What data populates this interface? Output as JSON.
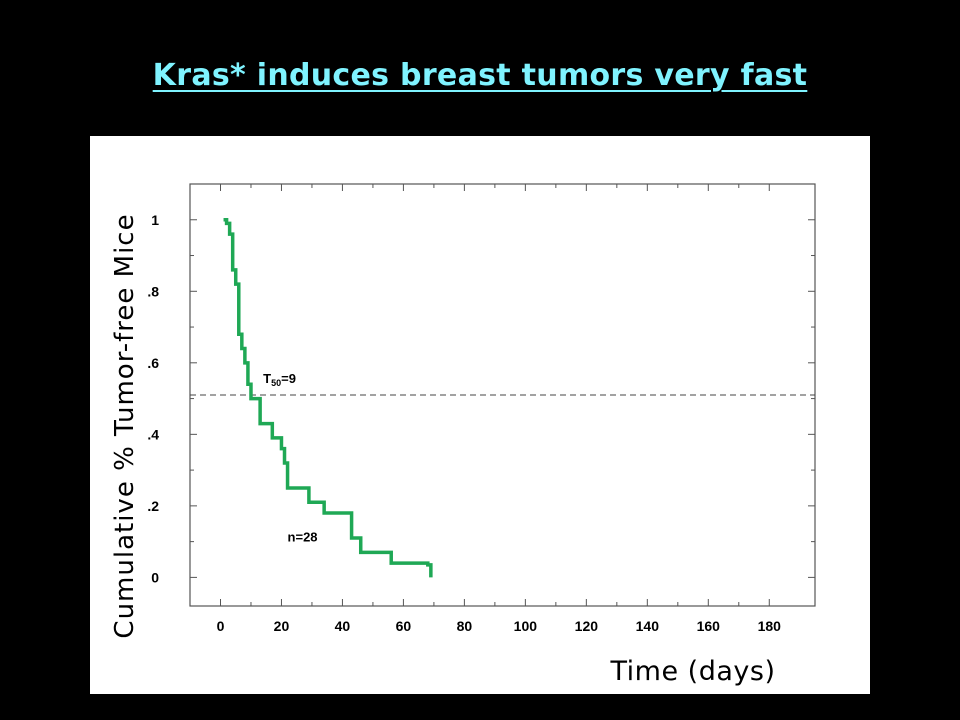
{
  "slide": {
    "title": "Kras* induces breast tumors very fast"
  },
  "chart_data": {
    "type": "line",
    "step": true,
    "title": "",
    "xlabel": "Time (days)",
    "ylabel": "Cumulative % Tumor-free Mice",
    "xlim": [
      -10,
      195
    ],
    "ylim": [
      -0.08,
      1.1
    ],
    "x_ticks": [
      0,
      20,
      40,
      60,
      80,
      100,
      120,
      140,
      160,
      180
    ],
    "x_tick_labels": [
      "0",
      "20",
      "40",
      "60",
      "80",
      "100",
      "120",
      "140",
      "160",
      "180"
    ],
    "y_ticks": [
      0,
      0.2,
      0.4,
      0.6,
      0.8,
      1
    ],
    "y_tick_labels": [
      "0",
      ".2",
      ".4",
      ".6",
      ".8",
      "1"
    ],
    "grid": false,
    "series": [
      {
        "color": "#1fa855",
        "x": [
          1,
          2,
          3,
          4,
          5,
          6,
          7,
          8,
          9,
          10,
          12,
          13,
          17,
          20,
          21,
          22,
          24,
          29,
          34,
          43,
          46,
          56,
          68,
          69
        ],
        "y": [
          1,
          0.99,
          0.96,
          0.86,
          0.82,
          0.68,
          0.64,
          0.6,
          0.54,
          0.5,
          0.5,
          0.43,
          0.39,
          0.36,
          0.32,
          0.25,
          0.25,
          0.21,
          0.18,
          0.11,
          0.07,
          0.04,
          0.035,
          0
        ]
      }
    ],
    "reference_line": {
      "y": 0.51,
      "style": "dashed"
    },
    "annotations": [
      {
        "text_prefix": "T",
        "text_subscript": "50",
        "text_suffix": "=9"
      },
      {
        "text": "n=28"
      }
    ]
  }
}
